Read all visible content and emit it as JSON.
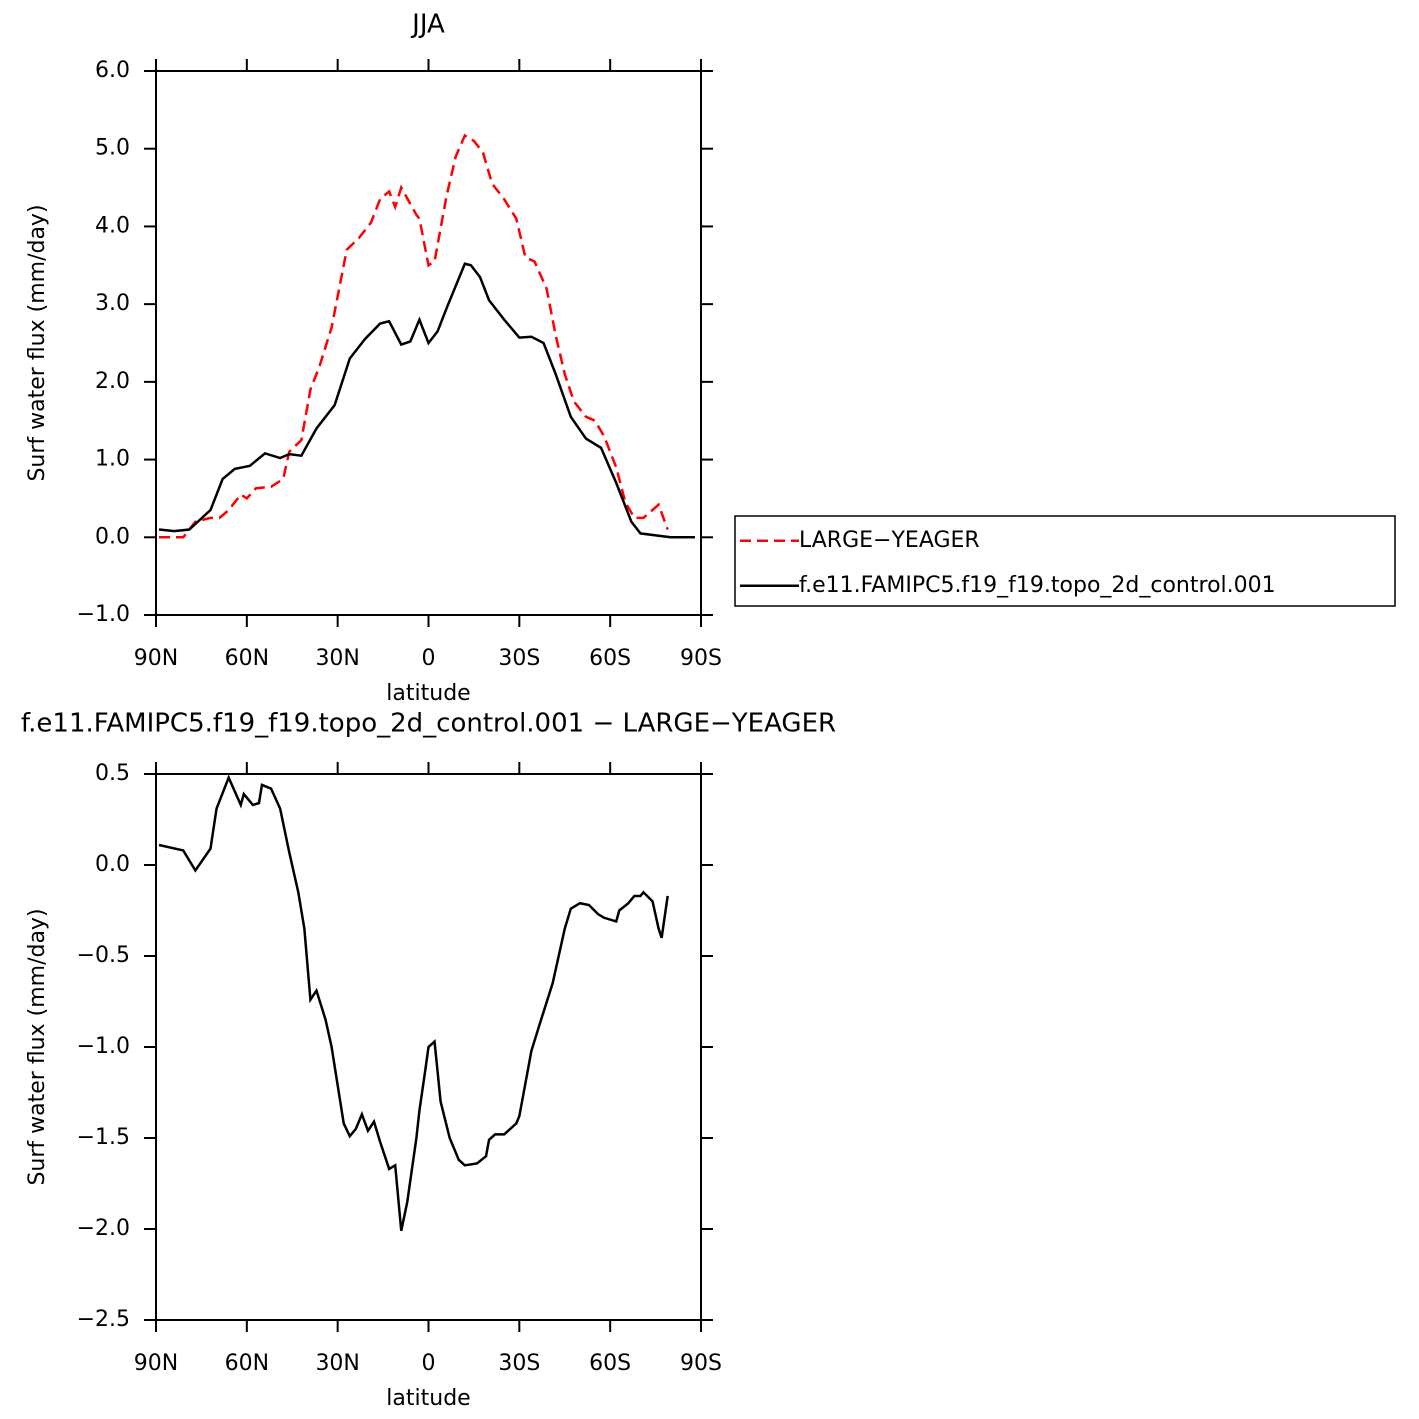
{
  "chart_data": [
    {
      "type": "line",
      "title": "JJA",
      "xlabel": "latitude",
      "ylabel": "Surf  water  flux  (mm/day)",
      "xlim": [
        90,
        -90
      ],
      "xticks": [
        {
          "value": 90,
          "label": "90N"
        },
        {
          "value": 60,
          "label": "60N"
        },
        {
          "value": 30,
          "label": "30N"
        },
        0,
        {
          "value": -30,
          "label": "30S"
        },
        {
          "value": -60,
          "label": "60S"
        },
        {
          "value": -90,
          "label": "90S"
        }
      ],
      "ylim": [
        -1,
        6
      ],
      "yticks": [
        {
          "value": -1,
          "label": "−1.0"
        },
        {
          "value": 0,
          "label": "0.0"
        },
        {
          "value": 1,
          "label": "1.0"
        },
        {
          "value": 2,
          "label": "2.0"
        },
        {
          "value": 3,
          "label": "3.0"
        },
        {
          "value": 4,
          "label": "4.0"
        },
        {
          "value": 5,
          "label": "5.0"
        },
        {
          "value": 6,
          "label": "6.0"
        }
      ],
      "legend": "right",
      "series": [
        {
          "name": "LARGE−YEAGER",
          "color": "#ff0000",
          "line_style": "dashed",
          "x": [
            89,
            81,
            77,
            72,
            69,
            66,
            62,
            60,
            57,
            52,
            48,
            46,
            42,
            39,
            36,
            32,
            27,
            23,
            19,
            16,
            13,
            11,
            9,
            4,
            3,
            0,
            -2,
            -6,
            -9,
            -12,
            -15,
            -18,
            -21,
            -25,
            -29,
            -32,
            -35,
            -39,
            -42,
            -45,
            -48,
            -52,
            -55,
            -58,
            -62,
            -65,
            -68,
            -71,
            -76,
            -79
          ],
          "values": [
            0,
            0,
            0.2,
            0.25,
            0.25,
            0.35,
            0.55,
            0.5,
            0.63,
            0.65,
            0.75,
            1.1,
            1.25,
            1.9,
            2.2,
            2.7,
            3.7,
            3.85,
            4.05,
            4.35,
            4.45,
            4.25,
            4.5,
            4.15,
            4.1,
            3.5,
            3.55,
            4.4,
            4.9,
            5.17,
            5.1,
            4.95,
            4.55,
            4.35,
            4.1,
            3.6,
            3.55,
            3.2,
            2.6,
            2.1,
            1.75,
            1.55,
            1.5,
            1.3,
            0.9,
            0.45,
            0.25,
            0.25,
            0.42,
            0.1
          ]
        },
        {
          "name": "f.e11.FAMIPC5.f19_f19.topo_2d_control.001",
          "color": "#000000",
          "line_style": "solid",
          "x": [
            89,
            84,
            79,
            72,
            68,
            64,
            59,
            54,
            49,
            46,
            42,
            37,
            31,
            26,
            21,
            16,
            13,
            9,
            6,
            3,
            0,
            -3,
            -6,
            -12,
            -14,
            -17,
            -20,
            -25,
            -30,
            -34,
            -38,
            -42,
            -47,
            -52,
            -57,
            -62,
            -67,
            -70,
            -76,
            -80,
            -88
          ],
          "values": [
            0.1,
            0.08,
            0.1,
            0.35,
            0.75,
            0.88,
            0.92,
            1.08,
            1.02,
            1.07,
            1.05,
            1.4,
            1.7,
            2.3,
            2.55,
            2.75,
            2.78,
            2.48,
            2.52,
            2.8,
            2.5,
            2.65,
            2.95,
            3.52,
            3.5,
            3.35,
            3.05,
            2.8,
            2.57,
            2.58,
            2.5,
            2.1,
            1.55,
            1.27,
            1.15,
            0.7,
            0.2,
            0.05,
            0.02,
            0,
            0
          ]
        }
      ]
    },
    {
      "type": "line",
      "title": "f.e11.FAMIPC5.f19_f19.topo_2d_control.001  −  LARGE−YEAGER",
      "xlabel": "latitude",
      "ylabel": "Surf  water  flux  (mm/day)",
      "xlim": [
        90,
        -90
      ],
      "xticks": [
        {
          "value": 90,
          "label": "90N"
        },
        {
          "value": 60,
          "label": "60N"
        },
        {
          "value": 30,
          "label": "30N"
        },
        0,
        {
          "value": -30,
          "label": "30S"
        },
        {
          "value": -60,
          "label": "60S"
        },
        {
          "value": -90,
          "label": "90S"
        }
      ],
      "ylim": [
        -2.5,
        0.5
      ],
      "yticks": [
        {
          "value": -2.5,
          "label": "−2.5"
        },
        {
          "value": -2,
          "label": "−2.0"
        },
        {
          "value": -1.5,
          "label": "−1.5"
        },
        {
          "value": -1,
          "label": "−1.0"
        },
        {
          "value": -0.5,
          "label": "−0.5"
        },
        {
          "value": 0,
          "label": "0.0"
        },
        0.5
      ],
      "series": [
        {
          "color": "#000000",
          "line_style": "solid",
          "x": [
            89,
            81,
            77,
            72,
            70,
            66,
            62,
            61,
            58,
            56,
            55,
            52,
            49,
            46,
            43,
            41,
            39,
            37,
            34,
            32,
            28,
            26,
            24,
            22,
            20,
            18,
            16,
            13,
            11,
            9,
            7,
            4,
            3,
            1,
            0,
            -2,
            -4,
            -7,
            -10,
            -12,
            -16,
            -19,
            -20,
            -22,
            -25,
            -29,
            -30,
            -34,
            -37,
            -41,
            -45,
            -47,
            -50,
            -53,
            -56,
            -58,
            -62,
            -63,
            -66,
            -68,
            -70,
            -71,
            -74,
            -76,
            -77,
            -79
          ],
          "values": [
            0.11,
            0.08,
            -0.03,
            0.09,
            0.31,
            0.48,
            0.33,
            0.39,
            0.33,
            0.34,
            0.44,
            0.42,
            0.31,
            0.07,
            -0.15,
            -0.35,
            -0.74,
            -0.69,
            -0.85,
            -1.0,
            -1.42,
            -1.49,
            -1.45,
            -1.37,
            -1.46,
            -1.41,
            -1.52,
            -1.67,
            -1.65,
            -2.01,
            -1.85,
            -1.5,
            -1.35,
            -1.12,
            -1.0,
            -0.97,
            -1.3,
            -1.5,
            -1.62,
            -1.65,
            -1.64,
            -1.6,
            -1.51,
            -1.48,
            -1.48,
            -1.42,
            -1.38,
            -1.02,
            -0.86,
            -0.65,
            -0.35,
            -0.24,
            -0.21,
            -0.22,
            -0.27,
            -0.29,
            -0.31,
            -0.25,
            -0.21,
            -0.17,
            -0.17,
            -0.15,
            -0.2,
            -0.35,
            -0.4,
            -0.17
          ]
        }
      ]
    }
  ]
}
